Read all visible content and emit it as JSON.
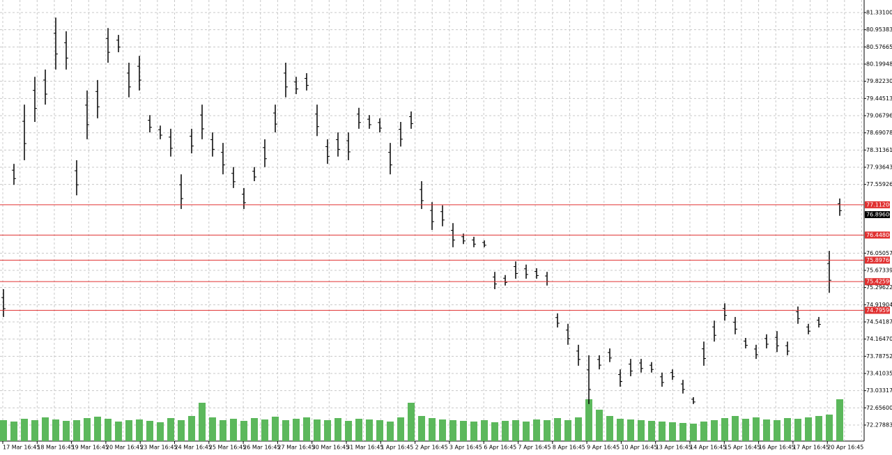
{
  "chart_data": {
    "type": "ohlc",
    "categories": [
      "17 Mar 16:45",
      "18 Mar 16:45",
      "19 Mar 16:45",
      "20 Mar 16:45",
      "23 Mar 16:45",
      "24 Mar 16:45",
      "25 Mar 16:45",
      "26 Mar 16:45",
      "27 Mar 16:45",
      "30 Mar 16:45",
      "31 Mar 16:45",
      "1 Apr 16:45",
      "2 Apr 16:45",
      "3 Apr 16:45",
      "6 Apr 16:45",
      "7 Apr 16:45",
      "8 Apr 16:45",
      "9 Apr 16:45",
      "10 Apr 16:45",
      "13 Apr 16:45",
      "14 Apr 16:45",
      "15 Apr 16:45",
      "16 Apr 16:45",
      "17 Apr 16:45",
      "20 Apr 16:45"
    ],
    "high": [
      75.26,
      78.01,
      79.31,
      79.92,
      80.08,
      81.22,
      80.92,
      78.09,
      79.62,
      79.85,
      80.99,
      80.84,
      80.23,
      80.38,
      79.08,
      78.85,
      78.78,
      77.78,
      78.78,
      79.31,
      78.7,
      78.47,
      77.94,
      77.48,
      77.94,
      78.55,
      79.31,
      80.23,
      79.92,
      80.0,
      79.31,
      78.55,
      78.7,
      78.7,
      79.24,
      79.08,
      79.01,
      78.47,
      78.93,
      79.16,
      77.63,
      77.17,
      77.1,
      76.71,
      76.48,
      76.41,
      76.33,
      75.64,
      75.57,
      75.87,
      75.8,
      75.72,
      75.64,
      74.73,
      74.5,
      74.04,
      73.81,
      73.81,
      73.96,
      73.5,
      73.73,
      73.73,
      73.66,
      73.43,
      73.5,
      73.27,
      72.89,
      74.11,
      74.57,
      74.95,
      74.65,
      74.19,
      74.04,
      74.27,
      74.34,
      74.11,
      74.88,
      74.5,
      74.65,
      76.1,
      77.25
    ],
    "low": [
      74.65,
      77.55,
      78.09,
      78.93,
      79.31,
      80.08,
      80.08,
      77.32,
      78.55,
      79.01,
      80.23,
      80.46,
      79.47,
      79.62,
      78.7,
      78.55,
      78.17,
      77.02,
      78.24,
      78.55,
      78.17,
      77.78,
      77.48,
      77.02,
      77.63,
      77.94,
      78.7,
      79.47,
      79.54,
      79.62,
      78.62,
      78.01,
      78.17,
      78.09,
      78.78,
      78.78,
      78.7,
      77.78,
      78.39,
      78.78,
      77.02,
      76.56,
      76.64,
      76.18,
      76.25,
      76.18,
      76.18,
      75.26,
      75.34,
      75.49,
      75.49,
      75.49,
      75.34,
      74.42,
      74.04,
      73.58,
      72.74,
      73.5,
      73.66,
      73.12,
      73.35,
      73.43,
      73.43,
      73.12,
      73.27,
      72.97,
      72.74,
      73.58,
      74.11,
      74.57,
      74.27,
      73.96,
      73.73,
      73.96,
      73.88,
      73.81,
      74.5,
      74.27,
      74.42,
      75.18,
      76.87
    ],
    "volume": [
      30,
      28,
      32,
      30,
      34,
      31,
      29,
      30,
      33,
      35,
      32,
      28,
      30,
      31,
      29,
      27,
      33,
      30,
      36,
      55,
      34,
      30,
      32,
      29,
      33,
      31,
      35,
      30,
      32,
      34,
      31,
      30,
      33,
      29,
      32,
      31,
      30,
      28,
      34,
      55,
      36,
      33,
      31,
      30,
      29,
      28,
      30,
      27,
      29,
      30,
      28,
      31,
      30,
      33,
      30,
      34,
      60,
      45,
      36,
      32,
      31,
      30,
      29,
      28,
      27,
      26,
      25,
      28,
      30,
      33,
      36,
      32,
      34,
      31,
      30,
      33,
      32,
      34,
      36,
      38,
      60
    ],
    "color": "#000000",
    "volume_color": "#5cb85c",
    "volume_lim": [
      0,
      100
    ],
    "ylim": [
      71.927,
      81.606
    ],
    "yticks": [
      {
        "value": 81.331,
        "label": "81.33100"
      },
      {
        "value": 80.95383,
        "label": "80.95383"
      },
      {
        "value": 80.57665,
        "label": "80.57665"
      },
      {
        "value": 80.19948,
        "label": "80.19948"
      },
      {
        "value": 79.8223,
        "label": "79.82230"
      },
      {
        "value": 79.44513,
        "label": "79.44513"
      },
      {
        "value": 79.06796,
        "label": "79.06796"
      },
      {
        "value": 78.69078,
        "label": "78.69078"
      },
      {
        "value": 78.31361,
        "label": "78.31361"
      },
      {
        "value": 77.93643,
        "label": "77.93643"
      },
      {
        "value": 77.55926,
        "label": "77.55926"
      },
      {
        "value": 76.05057,
        "label": "76.05057"
      },
      {
        "value": 75.67339,
        "label": "75.67339"
      },
      {
        "value": 75.29622,
        "label": "75.29622"
      },
      {
        "value": 74.91904,
        "label": "74.91904"
      },
      {
        "value": 74.54187,
        "label": "74.54187"
      },
      {
        "value": 74.1647,
        "label": "74.16470"
      },
      {
        "value": 73.78752,
        "label": "73.78752"
      },
      {
        "value": 73.41035,
        "label": "73.41035"
      },
      {
        "value": 73.03317,
        "label": "73.03317"
      },
      {
        "value": 72.656,
        "label": "72.65600"
      },
      {
        "value": 72.27883,
        "label": "72.27883"
      }
    ],
    "levels": [
      {
        "value": 77.112,
        "label": "77.11200"
      },
      {
        "value": 76.448,
        "label": "76.44800"
      },
      {
        "value": 75.8976,
        "label": "75.89760"
      },
      {
        "value": 75.4259,
        "label": "75.42590"
      },
      {
        "value": 74.7959,
        "label": "74.79590"
      }
    ],
    "level_color": "#e03030",
    "current": {
      "value": 76.896,
      "label": "76.89600"
    },
    "grid": true
  }
}
